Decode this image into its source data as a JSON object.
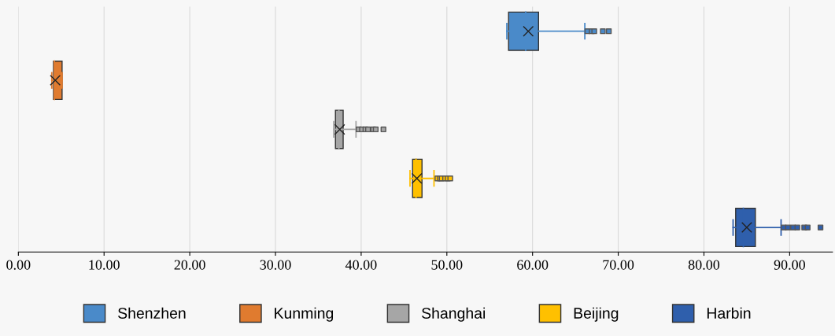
{
  "chart_data": {
    "type": "box",
    "orientation": "horizontal",
    "categories": [
      null,
      null,
      null,
      null,
      null
    ],
    "series": [
      {
        "name": "Shenzhen",
        "color": "#4a8ac9",
        "boxes": [
          {
            "low": 57.0,
            "q1": 57.2,
            "median": 59.2,
            "q3": 60.7,
            "high": 66.1,
            "mean": 59.5,
            "outliers": [
              66.4,
              66.9,
              67.2,
              68.2,
              68.9
            ]
          },
          null,
          null,
          null,
          null
        ]
      },
      {
        "name": "Kunming",
        "color": "#e07b2f",
        "boxes": [
          null,
          {
            "low": 3.9,
            "q1": 4.1,
            "median": 4.2,
            "q3": 5.1,
            "high": 5.1,
            "mean": 4.3
          },
          null,
          null,
          null
        ]
      },
      {
        "name": "Shanghai",
        "color": "#a6a6a6",
        "boxes": [
          null,
          null,
          {
            "low": 36.8,
            "q1": 37.0,
            "median": 37.4,
            "q3": 37.9,
            "high": 39.4,
            "mean": 37.5,
            "outliers": [
              39.7,
              40.1,
              40.5,
              40.8,
              41.4,
              41.7,
              42.6
            ]
          },
          null,
          null
        ]
      },
      {
        "name": "Beijing",
        "color": "#ffc000",
        "boxes": [
          null,
          null,
          null,
          {
            "low": 45.7,
            "q1": 46.0,
            "median": 46.4,
            "q3": 47.1,
            "high": 48.5,
            "mean": 46.5,
            "outliers": [
              48.9,
              49.2,
              49.4,
              49.8,
              50.1,
              50.4
            ]
          },
          null
        ]
      },
      {
        "name": "Harbin",
        "color": "#2f5fac",
        "boxes": [
          null,
          null,
          null,
          null,
          {
            "low": 83.4,
            "q1": 83.7,
            "median": 84.6,
            "q3": 86.0,
            "high": 89.0,
            "mean": 85.0,
            "outliers": [
              89.3,
              89.8,
              90.4,
              90.9,
              91.7,
              92.1,
              93.6
            ]
          }
        ]
      }
    ],
    "xlim": [
      0,
      95
    ],
    "xticks": [
      {
        "value": 0,
        "label": "0.00"
      },
      {
        "value": 10,
        "label": "10.00"
      },
      {
        "value": 20,
        "label": "20.00"
      },
      {
        "value": 30,
        "label": "30.00"
      },
      {
        "value": 40,
        "label": "40.00"
      },
      {
        "value": 50,
        "label": "50.00"
      },
      {
        "value": 60,
        "label": "60.00"
      },
      {
        "value": 70,
        "label": "70.00"
      },
      {
        "value": 80,
        "label": "80.00"
      },
      {
        "value": 90,
        "label": "90.00"
      }
    ],
    "grid": "x",
    "legend": "bottom",
    "tick_labels": "x"
  }
}
